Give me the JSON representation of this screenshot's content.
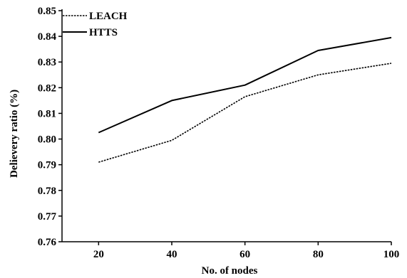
{
  "chart_data": {
    "type": "line",
    "title": "",
    "xlabel": "No. of nodes",
    "ylabel": "Delievery ratio (%)",
    "x": [
      20,
      40,
      60,
      80,
      100
    ],
    "xlim": [
      10,
      100
    ],
    "ylim": [
      0.76,
      0.85
    ],
    "x_ticks": [
      "20",
      "40",
      "60",
      "80",
      "100"
    ],
    "y_ticks": [
      "0.76",
      "0.77",
      "0.78",
      "0.79",
      "0.80",
      "0.81",
      "0.82",
      "0.83",
      "0.84",
      "0.85"
    ],
    "grid": false,
    "legend_position": "top-left",
    "series": [
      {
        "name": "LEACH",
        "values": [
          0.791,
          0.7995,
          0.8165,
          0.825,
          0.8295
        ],
        "style": "dashed",
        "color": "#000000"
      },
      {
        "name": "HTTS",
        "values": [
          0.8025,
          0.815,
          0.821,
          0.8345,
          0.8395
        ],
        "style": "solid",
        "color": "#000000"
      }
    ]
  }
}
